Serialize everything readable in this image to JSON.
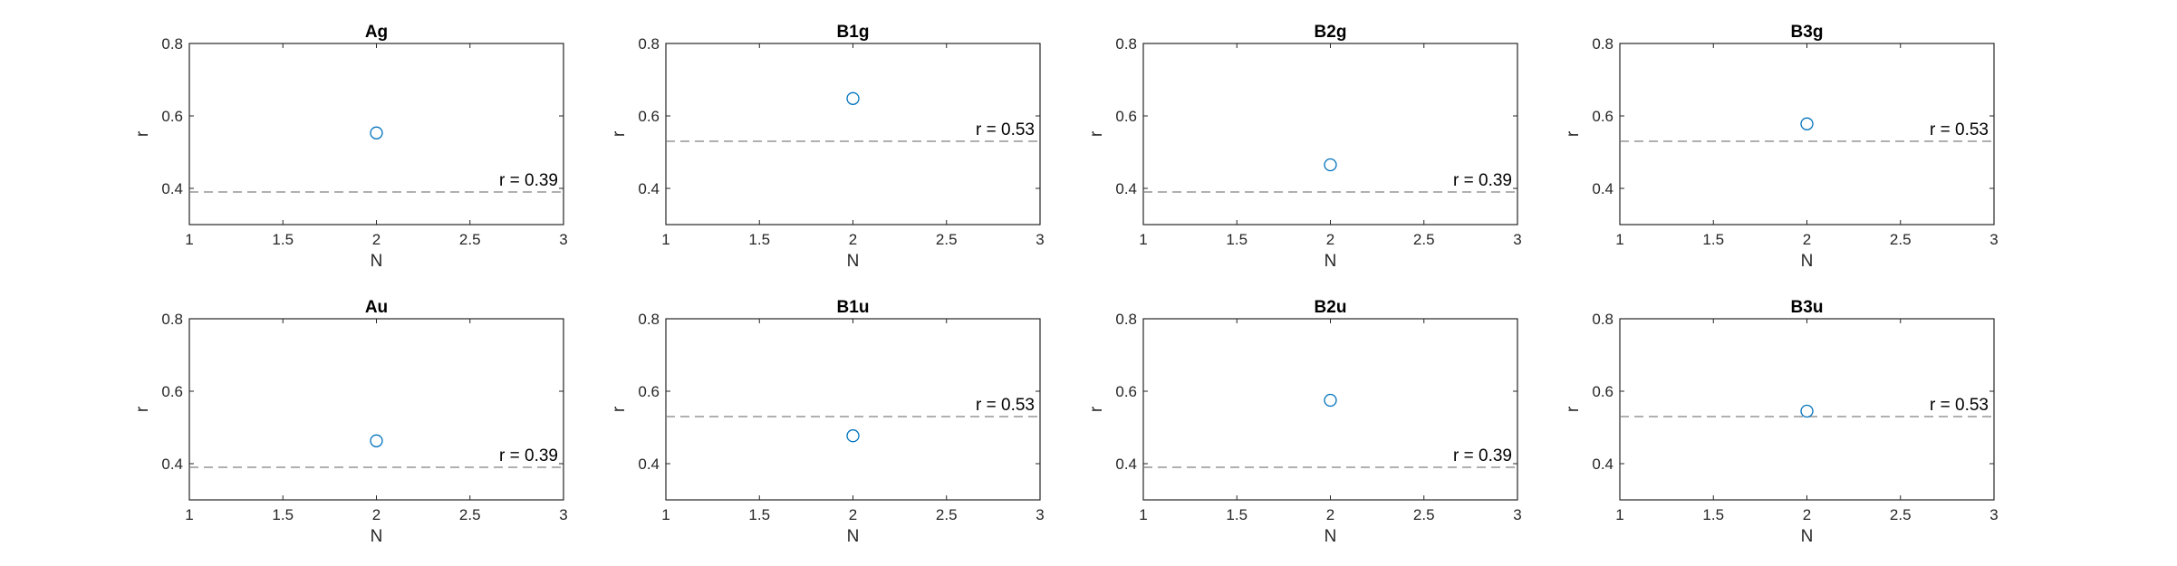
{
  "colors": {
    "marker": "#0072BD",
    "reference_line": "#808080",
    "axes": "#262626",
    "background": "#ffffff"
  },
  "chart_data": [
    {
      "type": "scatter",
      "title": "Ag",
      "xlabel": "N",
      "ylabel": "r",
      "xlim": [
        1,
        3
      ],
      "ylim": [
        0.3,
        0.8
      ],
      "xticks": [
        "1",
        "1.5",
        "2",
        "2.5",
        "3"
      ],
      "yticks": [
        "0.4",
        "0.6",
        "0.8"
      ],
      "x": [
        2
      ],
      "y": [
        0.553
      ],
      "reference_y": 0.39,
      "reference_label": "r = 0.39"
    },
    {
      "type": "scatter",
      "title": "B1g",
      "xlabel": "N",
      "ylabel": "r",
      "xlim": [
        1,
        3
      ],
      "ylim": [
        0.3,
        0.8
      ],
      "xticks": [
        "1",
        "1.5",
        "2",
        "2.5",
        "3"
      ],
      "yticks": [
        "0.4",
        "0.6",
        "0.8"
      ],
      "x": [
        2
      ],
      "y": [
        0.648
      ],
      "reference_y": 0.53,
      "reference_label": "r = 0.53"
    },
    {
      "type": "scatter",
      "title": "B2g",
      "xlabel": "N",
      "ylabel": "r",
      "xlim": [
        1,
        3
      ],
      "ylim": [
        0.3,
        0.8
      ],
      "xticks": [
        "1",
        "1.5",
        "2",
        "2.5",
        "3"
      ],
      "yticks": [
        "0.4",
        "0.6",
        "0.8"
      ],
      "x": [
        2
      ],
      "y": [
        0.465
      ],
      "reference_y": 0.39,
      "reference_label": "r = 0.39"
    },
    {
      "type": "scatter",
      "title": "B3g",
      "xlabel": "N",
      "ylabel": "r",
      "xlim": [
        1,
        3
      ],
      "ylim": [
        0.3,
        0.8
      ],
      "xticks": [
        "1",
        "1.5",
        "2",
        "2.5",
        "3"
      ],
      "yticks": [
        "0.4",
        "0.6",
        "0.8"
      ],
      "x": [
        2
      ],
      "y": [
        0.578
      ],
      "reference_y": 0.53,
      "reference_label": "r = 0.53"
    },
    {
      "type": "scatter",
      "title": "Au",
      "xlabel": "N",
      "ylabel": "r",
      "xlim": [
        1,
        3
      ],
      "ylim": [
        0.3,
        0.8
      ],
      "xticks": [
        "1",
        "1.5",
        "2",
        "2.5",
        "3"
      ],
      "yticks": [
        "0.4",
        "0.6",
        "0.8"
      ],
      "x": [
        2
      ],
      "y": [
        0.463
      ],
      "reference_y": 0.39,
      "reference_label": "r = 0.39"
    },
    {
      "type": "scatter",
      "title": "B1u",
      "xlabel": "N",
      "ylabel": "r",
      "xlim": [
        1,
        3
      ],
      "ylim": [
        0.3,
        0.8
      ],
      "xticks": [
        "1",
        "1.5",
        "2",
        "2.5",
        "3"
      ],
      "yticks": [
        "0.4",
        "0.6",
        "0.8"
      ],
      "x": [
        2
      ],
      "y": [
        0.477
      ],
      "reference_y": 0.53,
      "reference_label": "r = 0.53"
    },
    {
      "type": "scatter",
      "title": "B2u",
      "xlabel": "N",
      "ylabel": "r",
      "xlim": [
        1,
        3
      ],
      "ylim": [
        0.3,
        0.8
      ],
      "xticks": [
        "1",
        "1.5",
        "2",
        "2.5",
        "3"
      ],
      "yticks": [
        "0.4",
        "0.6",
        "0.8"
      ],
      "x": [
        2
      ],
      "y": [
        0.575
      ],
      "reference_y": 0.39,
      "reference_label": "r = 0.39"
    },
    {
      "type": "scatter",
      "title": "B3u",
      "xlabel": "N",
      "ylabel": "r",
      "xlim": [
        1,
        3
      ],
      "ylim": [
        0.3,
        0.8
      ],
      "xticks": [
        "1",
        "1.5",
        "2",
        "2.5",
        "3"
      ],
      "yticks": [
        "0.4",
        "0.6",
        "0.8"
      ],
      "x": [
        2
      ],
      "y": [
        0.545
      ],
      "reference_y": 0.53,
      "reference_label": "r = 0.53"
    }
  ]
}
